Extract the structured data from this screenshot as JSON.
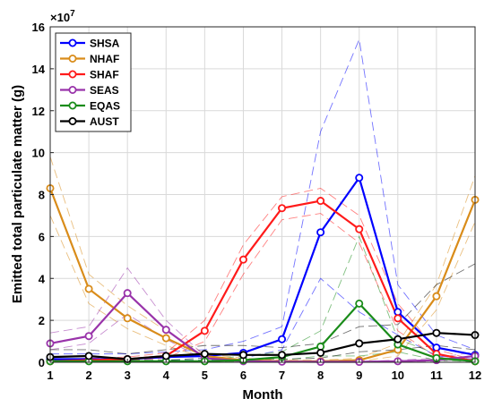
{
  "chart_data": {
    "type": "line",
    "title": "",
    "xlabel": "Month",
    "ylabel": "Emitted total particulate matter (g)",
    "y_multiplier_label": "×10",
    "y_multiplier_exponent": "7",
    "xlim": [
      1,
      12
    ],
    "ylim": [
      0,
      16
    ],
    "x_ticks": [
      "1",
      "2",
      "3",
      "4",
      "5",
      "6",
      "7",
      "8",
      "9",
      "10",
      "11",
      "12"
    ],
    "y_ticks": [
      "0",
      "2",
      "4",
      "6",
      "8",
      "10",
      "12",
      "14",
      "16"
    ],
    "grid": true,
    "legend_position": "top-left",
    "x": [
      1,
      2,
      3,
      4,
      5,
      6,
      7,
      8,
      9,
      10,
      11,
      12
    ],
    "series": [
      {
        "name": "SHSA",
        "color": "#0000ff",
        "values": [
          0.15,
          0.15,
          0.15,
          0.25,
          0.3,
          0.45,
          1.1,
          6.2,
          8.8,
          2.4,
          0.7,
          0.35
        ],
        "upper": [
          0.4,
          0.4,
          0.4,
          0.5,
          0.6,
          1.0,
          1.7,
          11.0,
          15.4,
          3.7,
          1.3,
          0.6
        ],
        "lower": [
          0.05,
          0.05,
          0.05,
          0.1,
          0.1,
          0.2,
          0.6,
          4.0,
          2.4,
          1.3,
          0.3,
          0.15
        ]
      },
      {
        "name": "NHAF",
        "color": "#d98c1a",
        "values": [
          8.3,
          3.5,
          2.1,
          1.15,
          0.3,
          0.1,
          0.05,
          0.05,
          0.1,
          0.6,
          3.15,
          7.75
        ],
        "upper": [
          9.8,
          4.2,
          2.7,
          1.5,
          0.4,
          0.2,
          0.1,
          0.1,
          0.2,
          0.9,
          3.7,
          8.9
        ],
        "lower": [
          7.0,
          2.8,
          1.6,
          0.8,
          0.2,
          0.05,
          0.02,
          0.02,
          0.05,
          0.3,
          2.5,
          6.7
        ]
      },
      {
        "name": "SHAF",
        "color": "#ff1a1a",
        "values": [
          0.05,
          0.1,
          0.15,
          0.3,
          1.5,
          4.9,
          7.35,
          7.7,
          6.35,
          2.1,
          0.4,
          0.05
        ],
        "upper": [
          0.1,
          0.2,
          0.25,
          0.45,
          2.0,
          5.6,
          7.9,
          8.3,
          7.0,
          2.8,
          0.6,
          0.1
        ],
        "lower": [
          0.02,
          0.05,
          0.08,
          0.2,
          1.0,
          4.2,
          6.8,
          7.1,
          5.7,
          1.5,
          0.25,
          0.02
        ]
      },
      {
        "name": "SEAS",
        "color": "#9933aa",
        "values": [
          0.9,
          1.25,
          3.3,
          1.55,
          0.2,
          0.05,
          0.03,
          0.02,
          0.02,
          0.05,
          0.1,
          0.3
        ],
        "upper": [
          1.4,
          1.7,
          4.5,
          2.0,
          0.3,
          0.1,
          0.05,
          0.04,
          0.04,
          0.1,
          0.2,
          0.5
        ],
        "lower": [
          0.6,
          0.9,
          2.3,
          1.1,
          0.1,
          0.02,
          0.01,
          0.01,
          0.01,
          0.02,
          0.05,
          0.15
        ]
      },
      {
        "name": "EQAS",
        "color": "#1a8c1a",
        "values": [
          0.05,
          0.05,
          0.05,
          0.05,
          0.05,
          0.1,
          0.25,
          0.75,
          2.8,
          0.85,
          0.2,
          0.05
        ],
        "upper": [
          0.1,
          0.1,
          0.1,
          0.1,
          0.1,
          0.3,
          0.5,
          1.5,
          6.0,
          1.1,
          0.4,
          0.1
        ],
        "lower": [
          0.02,
          0.02,
          0.02,
          0.02,
          0.02,
          0.05,
          0.1,
          0.3,
          0.3,
          0.5,
          0.1,
          0.02
        ]
      },
      {
        "name": "AUST",
        "color": "#000000",
        "values": [
          0.25,
          0.3,
          0.15,
          0.3,
          0.4,
          0.35,
          0.35,
          0.45,
          0.9,
          1.1,
          1.4,
          1.3
        ],
        "upper": [
          0.6,
          0.6,
          0.4,
          0.6,
          0.8,
          0.8,
          0.7,
          0.9,
          1.7,
          1.8,
          3.7,
          4.7
        ],
        "lower": [
          0.1,
          0.1,
          0.05,
          0.1,
          0.2,
          0.15,
          0.15,
          0.2,
          0.5,
          0.6,
          0.8,
          0.6
        ]
      }
    ]
  }
}
